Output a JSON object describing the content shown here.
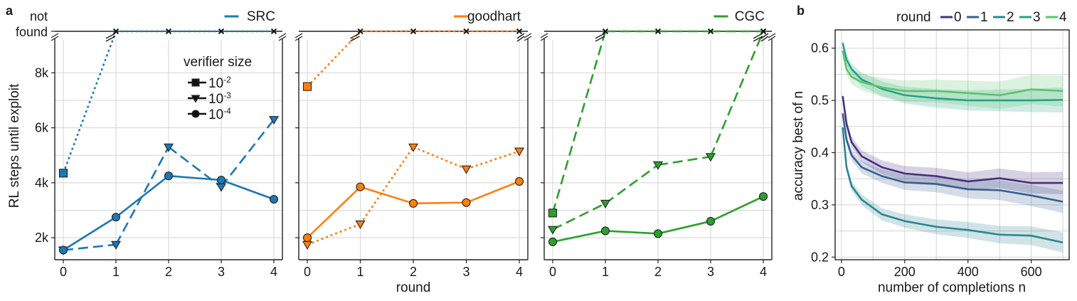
{
  "chart_data": [
    {
      "type": "line",
      "panel_label": "a",
      "legend_title": "verifier size",
      "marker_legend": [
        {
          "marker": "square",
          "base": "10",
          "exp": "-2"
        },
        {
          "marker": "triangle",
          "base": "10",
          "exp": "-3"
        },
        {
          "marker": "circle",
          "base": "10",
          "exp": "-4"
        }
      ],
      "ylabel": "RL steps until exploit",
      "xlabel": "round",
      "y_ticks": [
        "2k",
        "4k",
        "6k",
        "8k"
      ],
      "y_top_labels": [
        "not",
        "found"
      ],
      "x_ticks": [
        0,
        1,
        2,
        3,
        4
      ],
      "ylim": [
        1200,
        9200
      ],
      "grid": true,
      "panels": [
        {
          "name": "SRC",
          "color": "#1f77b4",
          "series": [
            {
              "marker": "square",
              "style": "dotted",
              "x": [
                0,
                1,
                2,
                3,
                4
              ],
              "y": [
                4350,
                "not found",
                "not found",
                "not found",
                "not found"
              ]
            },
            {
              "marker": "triangle",
              "style": "dashed",
              "x": [
                0,
                1,
                2,
                3,
                4
              ],
              "y": [
                1550,
                1750,
                5300,
                3850,
                6300
              ]
            },
            {
              "marker": "circle",
              "style": "solid",
              "x": [
                0,
                1,
                2,
                3,
                4
              ],
              "y": [
                1550,
                2750,
                4250,
                4100,
                3400
              ]
            }
          ]
        },
        {
          "name": "goodhart",
          "color": "#ff7f0e",
          "series": [
            {
              "marker": "square",
              "style": "dotted",
              "x": [
                0,
                1,
                2,
                3,
                4
              ],
              "y": [
                7500,
                "not found",
                "not found",
                "not found",
                "not found"
              ]
            },
            {
              "marker": "triangle",
              "style": "dotted",
              "x": [
                0,
                1,
                2,
                3,
                4
              ],
              "y": [
                1750,
                2500,
                5300,
                4500,
                5150
              ]
            },
            {
              "marker": "circle",
              "style": "solid",
              "x": [
                0,
                1,
                2,
                3,
                4
              ],
              "y": [
                2000,
                3850,
                3250,
                3280,
                4050
              ]
            }
          ]
        },
        {
          "name": "CGC",
          "color": "#2ca02c",
          "series": [
            {
              "marker": "square",
              "style": "dashed",
              "x": [
                0,
                1,
                2,
                3,
                4
              ],
              "y": [
                2900,
                "not found",
                "not found",
                "not found",
                "not found"
              ]
            },
            {
              "marker": "triangle",
              "style": "dashed",
              "x": [
                0,
                1,
                2,
                3,
                4
              ],
              "y": [
                2300,
                3250,
                4650,
                4950,
                "not found"
              ]
            },
            {
              "marker": "circle",
              "style": "solid",
              "x": [
                0,
                1,
                2,
                3,
                4
              ],
              "y": [
                1850,
                2250,
                2150,
                2600,
                3500
              ]
            }
          ]
        }
      ]
    },
    {
      "type": "line",
      "panel_label": "b",
      "legend_title": "round",
      "xlabel": "number of completions n",
      "ylabel": "accuracy best of n",
      "x_ticks": [
        0,
        200,
        400,
        600
      ],
      "y_ticks": [
        0.2,
        0.3,
        0.4,
        0.5,
        0.6
      ],
      "xlim": [
        -20,
        720
      ],
      "ylim": [
        0.195,
        0.635
      ],
      "grid": true,
      "x": [
        4,
        16,
        32,
        64,
        128,
        200,
        300,
        400,
        500,
        600,
        700
      ],
      "series": [
        {
          "name": "0",
          "color": "#45317f",
          "band": 0.018,
          "values": [
            0.508,
            0.455,
            0.42,
            0.393,
            0.372,
            0.36,
            0.355,
            0.345,
            0.351,
            0.342,
            0.342
          ]
        },
        {
          "name": "1",
          "color": "#365f90",
          "band": 0.018,
          "values": [
            0.475,
            0.425,
            0.395,
            0.372,
            0.355,
            0.343,
            0.34,
            0.33,
            0.328,
            0.318,
            0.306
          ]
        },
        {
          "name": "2",
          "color": "#2b8690",
          "band": 0.016,
          "values": [
            0.448,
            0.372,
            0.336,
            0.31,
            0.282,
            0.269,
            0.258,
            0.252,
            0.243,
            0.241,
            0.228
          ]
        },
        {
          "name": "3",
          "color": "#24a386",
          "band": 0.02,
          "values": [
            0.61,
            0.578,
            0.56,
            0.54,
            0.522,
            0.51,
            0.504,
            0.5,
            0.5,
            0.5,
            0.501
          ]
        },
        {
          "name": "4",
          "color": "#5cc36a",
          "band": 0.025,
          "values": [
            0.595,
            0.56,
            0.545,
            0.535,
            0.525,
            0.518,
            0.518,
            0.514,
            0.51,
            0.521,
            0.518
          ]
        }
      ]
    }
  ]
}
